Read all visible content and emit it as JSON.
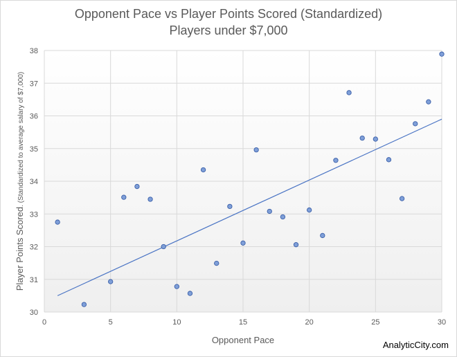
{
  "chart_data": {
    "type": "scatter",
    "title": "Opponent Pace vs Player Points Scored (Standardized)",
    "subtitle": "Players under $7,000",
    "xlabel": "Opponent Pace",
    "ylabel_main": "Player Points Scored",
    "ylabel_note": ". (Standardized to average salary of $7,000)",
    "xlim": [
      0,
      30
    ],
    "ylim": [
      30,
      38
    ],
    "x_ticks": [
      0,
      5,
      10,
      15,
      20,
      25,
      30
    ],
    "y_ticks": [
      30,
      31,
      32,
      33,
      34,
      35,
      36,
      37,
      38
    ],
    "grid": true,
    "marker_color": "#7f9fd8",
    "marker_edge": "#3a5fa8",
    "trendline_color": "#4a74c4",
    "trendline": {
      "x": [
        1,
        30
      ],
      "y": [
        30.5,
        35.9
      ]
    },
    "points": [
      {
        "x": 1,
        "y": 32.75
      },
      {
        "x": 3,
        "y": 30.23
      },
      {
        "x": 5,
        "y": 30.93
      },
      {
        "x": 6,
        "y": 33.51
      },
      {
        "x": 7,
        "y": 33.84
      },
      {
        "x": 8,
        "y": 33.45
      },
      {
        "x": 9,
        "y": 32.0
      },
      {
        "x": 10,
        "y": 30.78
      },
      {
        "x": 11,
        "y": 30.57
      },
      {
        "x": 12,
        "y": 34.35
      },
      {
        "x": 13,
        "y": 31.49
      },
      {
        "x": 14,
        "y": 33.23
      },
      {
        "x": 15,
        "y": 32.11
      },
      {
        "x": 16,
        "y": 34.96
      },
      {
        "x": 17,
        "y": 33.08
      },
      {
        "x": 18,
        "y": 32.91
      },
      {
        "x": 19,
        "y": 32.06
      },
      {
        "x": 20,
        "y": 33.12
      },
      {
        "x": 21,
        "y": 32.34
      },
      {
        "x": 22,
        "y": 34.64
      },
      {
        "x": 23,
        "y": 36.71
      },
      {
        "x": 24,
        "y": 35.32
      },
      {
        "x": 25,
        "y": 35.29
      },
      {
        "x": 26,
        "y": 34.66
      },
      {
        "x": 27,
        "y": 33.47
      },
      {
        "x": 28,
        "y": 35.76
      },
      {
        "x": 29,
        "y": 36.43
      },
      {
        "x": 30,
        "y": 37.89
      }
    ]
  },
  "watermark": "AnalyticCity.com"
}
